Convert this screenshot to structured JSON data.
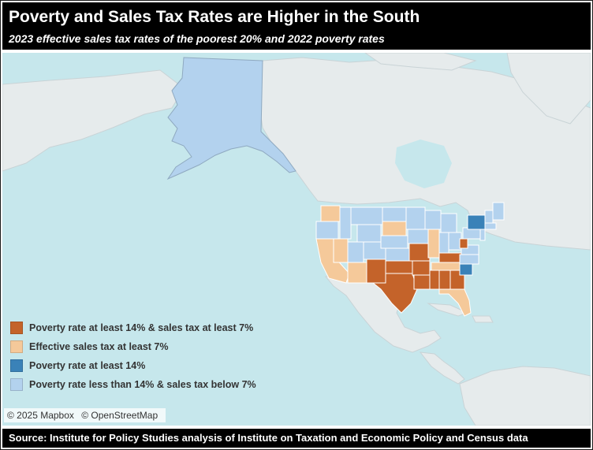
{
  "title": "Poverty and Sales Tax Rates are Higher in the South",
  "subtitle": "2023 effective sales tax rates of the poorest 20% and 2022 poverty rates",
  "legend": [
    {
      "label": "Poverty rate at least 14% & sales tax at least 7%",
      "color": "#c4632a"
    },
    {
      "label": "Effective sales tax at least 7%",
      "color": "#f5c99a"
    },
    {
      "label": "Poverty rate at least 14%",
      "color": "#3a82b8"
    },
    {
      "label": "Poverty rate less than 14% & sales tax below 7%",
      "color": "#b3d2ee"
    }
  ],
  "attribution": {
    "mapbox": "© 2025 Mapbox",
    "osm": "© OpenStreetMap"
  },
  "source": "Source: Institute for Policy Studies analysis of Institute on Taxation and Economic Policy and Census data",
  "colors": {
    "water": "#c6e7ec",
    "land": "#e6ebec",
    "high_both": "#c4632a",
    "high_tax": "#f5c99a",
    "high_poverty": "#3a82b8",
    "low_both": "#b3d2ee"
  }
}
